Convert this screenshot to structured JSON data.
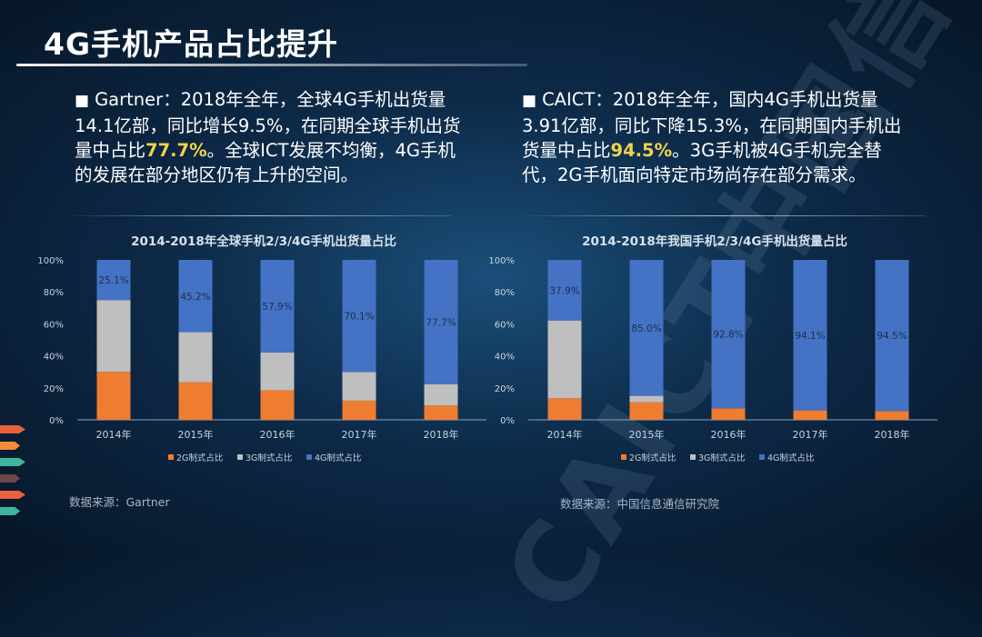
{
  "title": "4G手机产品占比提升",
  "left_text": {
    "bullet": "■",
    "before": "Gartner：2018年全年，全球4G手机出货量14.1亿部，同比增长9.5%，在同期全球手机出货量中占比",
    "highlight": "77.7%",
    "after": "。全球ICT发展不均衡，4G手机的发展在部分地区仍有上升的空间。"
  },
  "right_text": {
    "bullet": "■",
    "before": "CAICT：2018年全年，国内4G手机出货量3.91亿部，同比下降15.3%，在同期国内手机出货量中占比",
    "highlight": "94.5%",
    "after": "。3G手机被4G手机完全替代，2G手机面向特定市场尚存在部分需求。"
  },
  "colors": {
    "series_2g": "#ee7d31",
    "series_3g": "#bfbfbf",
    "series_4g": "#4472c4",
    "highlight": "#f3d24a"
  },
  "watermark": "CAICT中国信通院",
  "decor_arrow_colors": [
    "#e8603c",
    "#f08c3a",
    "#3fb59d",
    "#6a4a45",
    "#e8603c",
    "#3fb59d"
  ],
  "chart_data": [
    {
      "type": "bar",
      "stacked": true,
      "title": "2014-2018年全球手机2/3/4G手机出货量占比",
      "categories": [
        "2014年",
        "2015年",
        "2016年",
        "2017年",
        "2018年"
      ],
      "series": [
        {
          "name": "2G制式占比",
          "values": [
            30.0,
            23.5,
            18.5,
            12.0,
            9.0
          ]
        },
        {
          "name": "3G制式占比",
          "values": [
            44.9,
            31.3,
            23.6,
            17.9,
            13.3
          ]
        },
        {
          "name": "4G制式占比",
          "values": [
            25.1,
            45.2,
            57.9,
            70.1,
            77.7
          ]
        }
      ],
      "data_labels": [
        "25.1%",
        "45.2%",
        "57.9%",
        "70.1%",
        "77.7%"
      ],
      "y_ticks": [
        "0%",
        "20%",
        "40%",
        "60%",
        "80%",
        "100%"
      ],
      "ylim": [
        0,
        100
      ],
      "legend_position": "bottom",
      "source": "数据来源：Gartner"
    },
    {
      "type": "bar",
      "stacked": true,
      "title": "2014-2018年我国手机2/3/4G手机出货量占比",
      "categories": [
        "2014年",
        "2015年",
        "2016年",
        "2017年",
        "2018年"
      ],
      "series": [
        {
          "name": "2G制式占比",
          "values": [
            13.5,
            11.0,
            7.2,
            5.9,
            5.5
          ]
        },
        {
          "name": "3G制式占比",
          "values": [
            48.6,
            4.0,
            0.0,
            0.0,
            0.0
          ]
        },
        {
          "name": "4G制式占比",
          "values": [
            37.9,
            85.0,
            92.8,
            94.1,
            94.5
          ]
        }
      ],
      "data_labels": [
        "37.9%",
        "85.0%",
        "92.8%",
        "94.1%",
        "94.5%"
      ],
      "y_ticks": [
        "0%",
        "20%",
        "40%",
        "60%",
        "80%",
        "100%"
      ],
      "ylim": [
        0,
        100
      ],
      "legend_position": "bottom",
      "source": "数据来源：中国信息通信研究院"
    }
  ]
}
